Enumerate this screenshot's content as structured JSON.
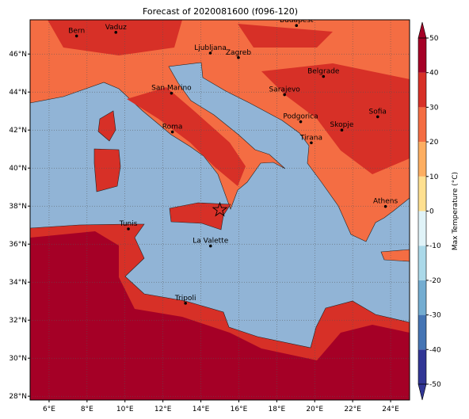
{
  "title": "Forecast of 2020081600 (f096-120)",
  "map": {
    "xlim": [
      5,
      25
    ],
    "ylim": [
      27.8,
      47.8
    ],
    "grid": true,
    "xticks": [
      {
        "value": 6,
        "label": "6°E"
      },
      {
        "value": 8,
        "label": "8°E"
      },
      {
        "value": 10,
        "label": "10°E"
      },
      {
        "value": 12,
        "label": "12°E"
      },
      {
        "value": 14,
        "label": "14°E"
      },
      {
        "value": 16,
        "label": "16°E"
      },
      {
        "value": 18,
        "label": "18°E"
      },
      {
        "value": 20,
        "label": "20°E"
      },
      {
        "value": 22,
        "label": "22°E"
      },
      {
        "value": 24,
        "label": "24°E"
      }
    ],
    "yticks": [
      {
        "value": 28,
        "label": "28°N"
      },
      {
        "value": 30,
        "label": "30°N"
      },
      {
        "value": 32,
        "label": "32°N"
      },
      {
        "value": 34,
        "label": "34°N"
      },
      {
        "value": 36,
        "label": "36°N"
      },
      {
        "value": 38,
        "label": "38°N"
      },
      {
        "value": 40,
        "label": "40°N"
      },
      {
        "value": 42,
        "label": "42°N"
      },
      {
        "value": 44,
        "label": "44°N"
      },
      {
        "value": 46,
        "label": "46°N"
      }
    ]
  },
  "cities": [
    {
      "name": "Bern",
      "lon": 7.45,
      "lat": 46.95
    },
    {
      "name": "Vaduz",
      "lon": 9.52,
      "lat": 47.14
    },
    {
      "name": "Budapest",
      "lon": 19.04,
      "lat": 47.5
    },
    {
      "name": "Ljubljana",
      "lon": 14.5,
      "lat": 46.05
    },
    {
      "name": "Zagreb",
      "lon": 15.98,
      "lat": 45.81
    },
    {
      "name": "Belgrade",
      "lon": 20.46,
      "lat": 44.82
    },
    {
      "name": "San Marino",
      "lon": 12.45,
      "lat": 43.94
    },
    {
      "name": "Sarajevo",
      "lon": 18.41,
      "lat": 43.86
    },
    {
      "name": "Sofia",
      "lon": 23.32,
      "lat": 42.7
    },
    {
      "name": "Roma",
      "lon": 12.5,
      "lat": 41.9
    },
    {
      "name": "Podgorica",
      "lon": 19.26,
      "lat": 42.44
    },
    {
      "name": "Skopje",
      "lon": 21.43,
      "lat": 42.0
    },
    {
      "name": "Tirana",
      "lon": 19.82,
      "lat": 41.33
    },
    {
      "name": "Athens",
      "lon": 23.73,
      "lat": 37.98
    },
    {
      "name": "Tunis",
      "lon": 10.18,
      "lat": 36.8
    },
    {
      "name": "La Valette",
      "lon": 14.51,
      "lat": 35.9
    },
    {
      "name": "Tripoli",
      "lon": 13.19,
      "lat": 32.89
    }
  ],
  "marker": {
    "lon": 15.0,
    "lat": 37.8
  },
  "colorbar": {
    "label": "Max Temperature (°C)",
    "lim": [
      -50,
      50
    ],
    "ticks": [
      -50,
      -40,
      -30,
      -20,
      -10,
      0,
      10,
      20,
      30,
      40,
      50
    ],
    "colors": [
      "#313695",
      "#4575b4",
      "#74add1",
      "#abd9e9",
      "#e0f3f8",
      "#fee090",
      "#fdae61",
      "#f46d43",
      "#d73027",
      "#a50026"
    ]
  }
}
